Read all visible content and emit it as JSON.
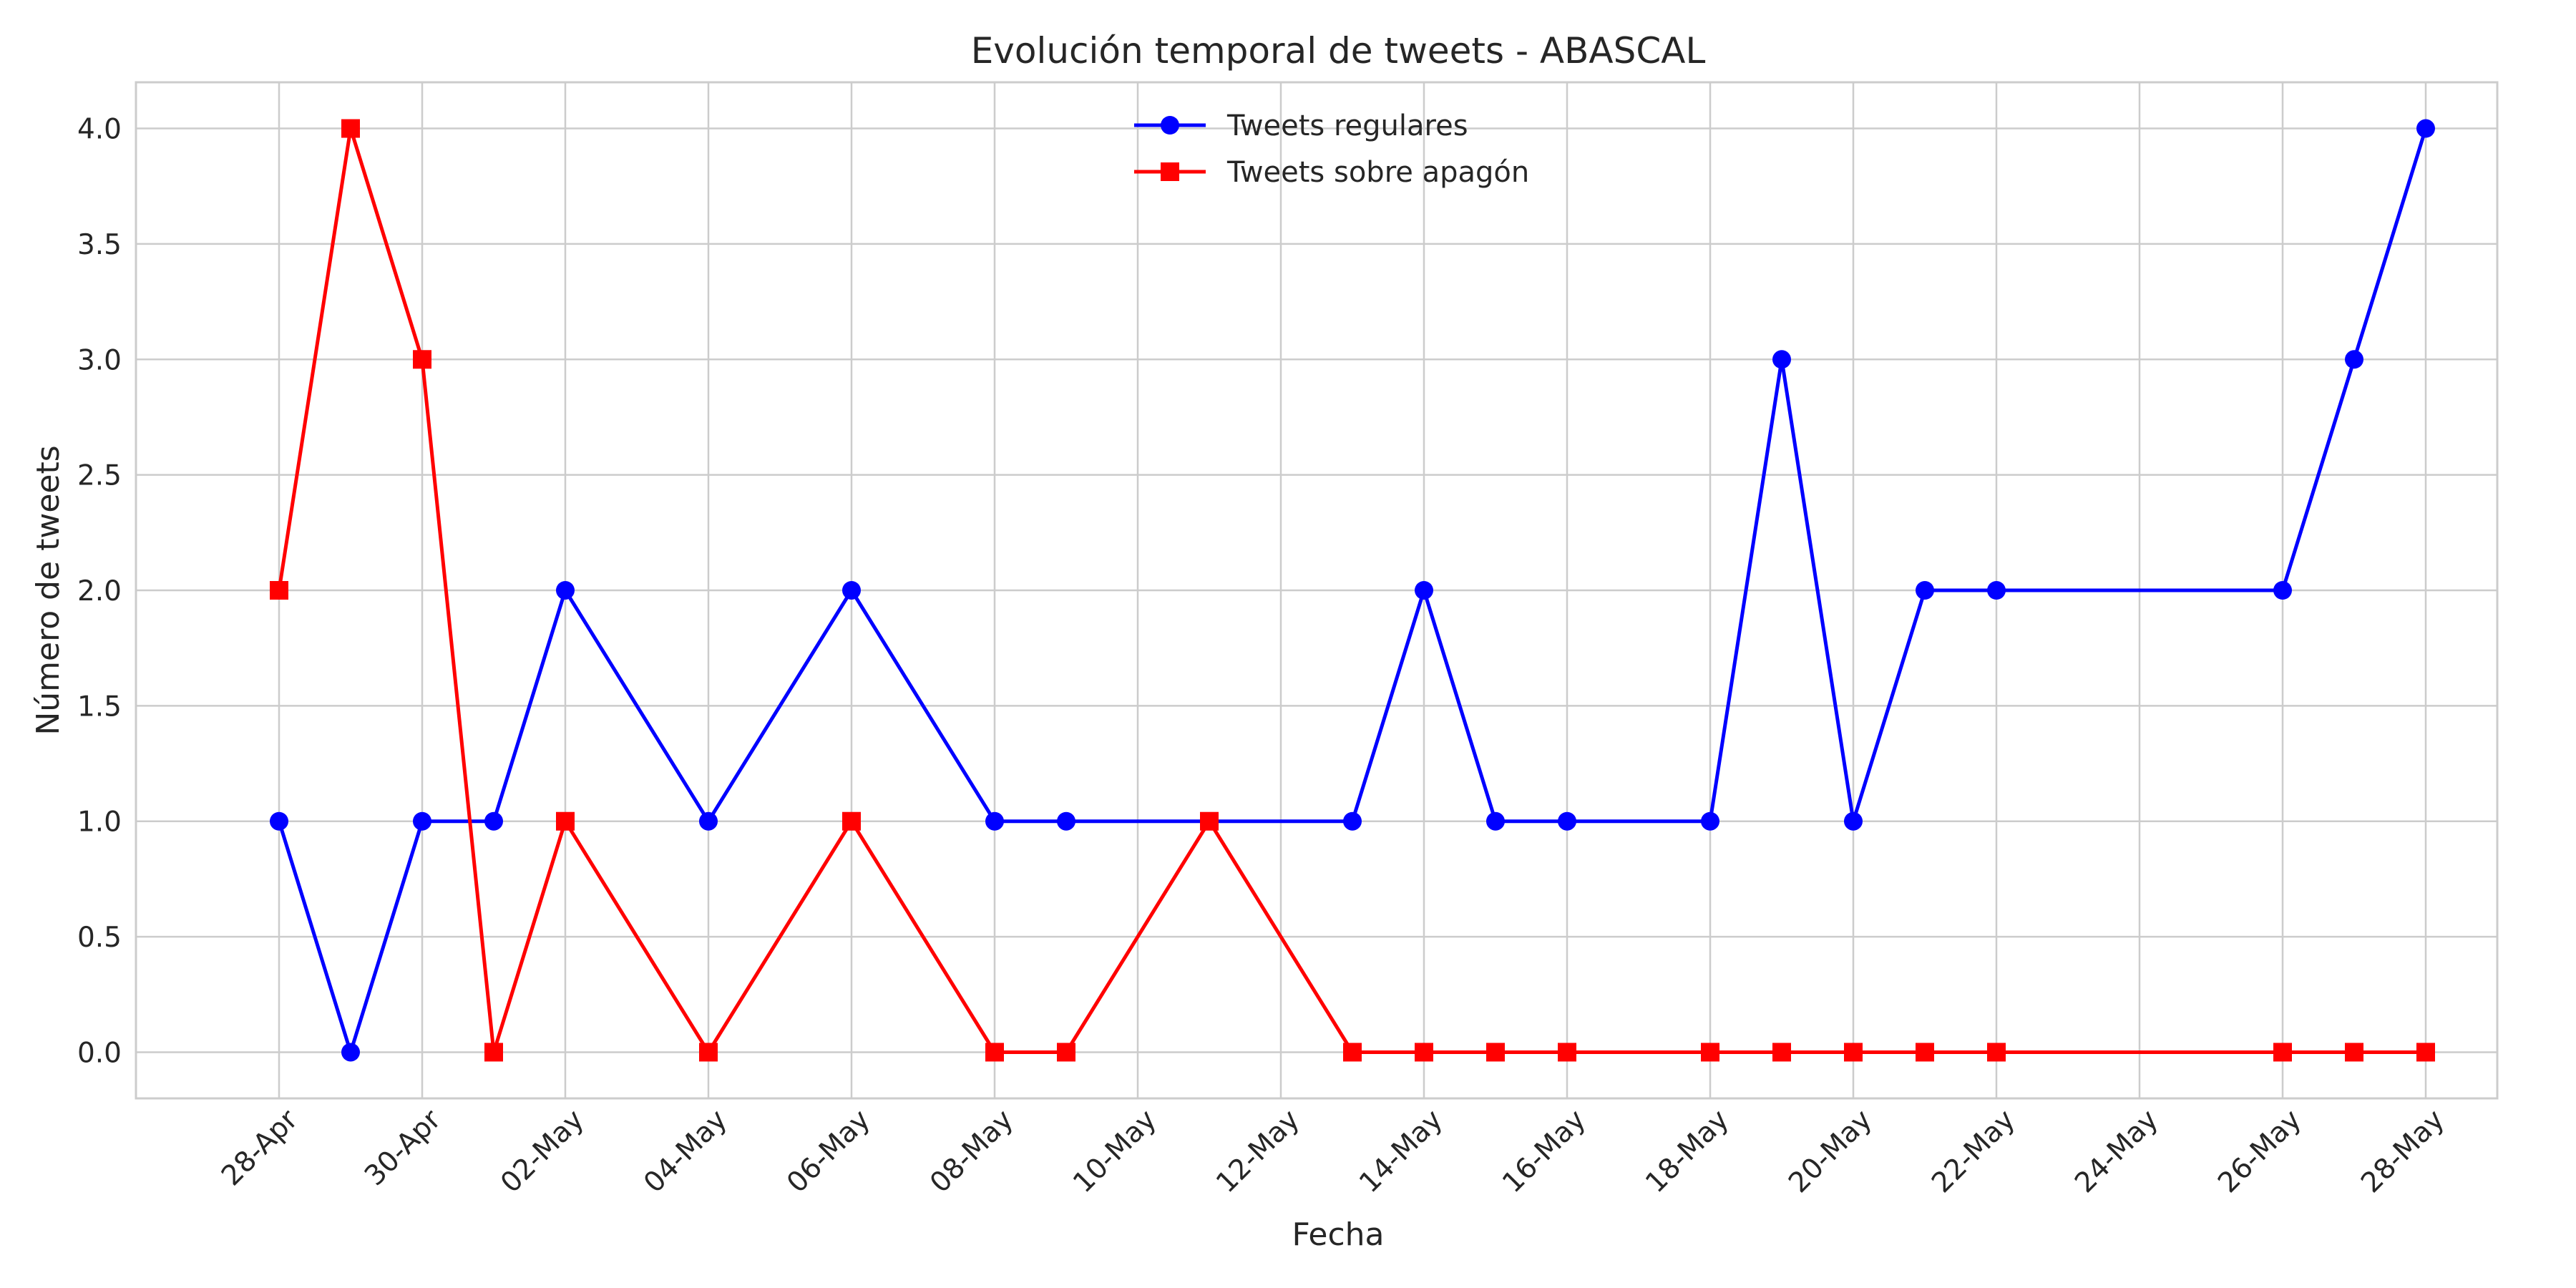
{
  "chart_data": {
    "type": "line",
    "title": "Evolución temporal de tweets - ABASCAL",
    "xlabel": "Fecha",
    "ylabel": "Número de tweets",
    "ylim": [
      -0.2,
      4.2
    ],
    "xlim": [
      "2025-04-26",
      "2025-05-29"
    ],
    "grid": true,
    "legend_position": "upper center",
    "x_ticks": [
      {
        "date": "2025-04-28",
        "label": "28-Apr"
      },
      {
        "date": "2025-04-30",
        "label": "30-Apr"
      },
      {
        "date": "2025-05-02",
        "label": "02-May"
      },
      {
        "date": "2025-05-04",
        "label": "04-May"
      },
      {
        "date": "2025-05-06",
        "label": "06-May"
      },
      {
        "date": "2025-05-08",
        "label": "08-May"
      },
      {
        "date": "2025-05-10",
        "label": "10-May"
      },
      {
        "date": "2025-05-12",
        "label": "12-May"
      },
      {
        "date": "2025-05-14",
        "label": "14-May"
      },
      {
        "date": "2025-05-16",
        "label": "16-May"
      },
      {
        "date": "2025-05-18",
        "label": "18-May"
      },
      {
        "date": "2025-05-20",
        "label": "20-May"
      },
      {
        "date": "2025-05-22",
        "label": "22-May"
      },
      {
        "date": "2025-05-24",
        "label": "24-May"
      },
      {
        "date": "2025-05-26",
        "label": "26-May"
      },
      {
        "date": "2025-05-28",
        "label": "28-May"
      }
    ],
    "y_ticks": [
      {
        "value": 0.0,
        "label": "0.0"
      },
      {
        "value": 0.5,
        "label": "0.5"
      },
      {
        "value": 1.0,
        "label": "1.0"
      },
      {
        "value": 1.5,
        "label": "1.5"
      },
      {
        "value": 2.0,
        "label": "2.0"
      },
      {
        "value": 2.5,
        "label": "2.5"
      },
      {
        "value": 3.0,
        "label": "3.0"
      },
      {
        "value": 3.5,
        "label": "3.5"
      },
      {
        "value": 4.0,
        "label": "4.0"
      }
    ],
    "series": [
      {
        "name": "Tweets regulares",
        "color": "#0000ff",
        "marker": "circle",
        "points": [
          {
            "x": "2025-04-28",
            "y": 1
          },
          {
            "x": "2025-04-29",
            "y": 0
          },
          {
            "x": "2025-04-30",
            "y": 1
          },
          {
            "x": "2025-05-01",
            "y": 1
          },
          {
            "x": "2025-05-02",
            "y": 2
          },
          {
            "x": "2025-05-04",
            "y": 1
          },
          {
            "x": "2025-05-06",
            "y": 2
          },
          {
            "x": "2025-05-08",
            "y": 1
          },
          {
            "x": "2025-05-09",
            "y": 1
          },
          {
            "x": "2025-05-13",
            "y": 1
          },
          {
            "x": "2025-05-14",
            "y": 2
          },
          {
            "x": "2025-05-15",
            "y": 1
          },
          {
            "x": "2025-05-16",
            "y": 1
          },
          {
            "x": "2025-05-18",
            "y": 1
          },
          {
            "x": "2025-05-19",
            "y": 3
          },
          {
            "x": "2025-05-20",
            "y": 1
          },
          {
            "x": "2025-05-21",
            "y": 2
          },
          {
            "x": "2025-05-22",
            "y": 2
          },
          {
            "x": "2025-05-26",
            "y": 2
          },
          {
            "x": "2025-05-27",
            "y": 3
          },
          {
            "x": "2025-05-28",
            "y": 4
          }
        ]
      },
      {
        "name": "Tweets sobre apagón",
        "color": "#ff0000",
        "marker": "square",
        "points": [
          {
            "x": "2025-04-28",
            "y": 2
          },
          {
            "x": "2025-04-29",
            "y": 4
          },
          {
            "x": "2025-04-30",
            "y": 3
          },
          {
            "x": "2025-05-01",
            "y": 0
          },
          {
            "x": "2025-05-02",
            "y": 1
          },
          {
            "x": "2025-05-04",
            "y": 0
          },
          {
            "x": "2025-05-06",
            "y": 1
          },
          {
            "x": "2025-05-08",
            "y": 0
          },
          {
            "x": "2025-05-09",
            "y": 0
          },
          {
            "x": "2025-05-11",
            "y": 1
          },
          {
            "x": "2025-05-13",
            "y": 0
          },
          {
            "x": "2025-05-14",
            "y": 0
          },
          {
            "x": "2025-05-15",
            "y": 0
          },
          {
            "x": "2025-05-16",
            "y": 0
          },
          {
            "x": "2025-05-18",
            "y": 0
          },
          {
            "x": "2025-05-19",
            "y": 0
          },
          {
            "x": "2025-05-20",
            "y": 0
          },
          {
            "x": "2025-05-21",
            "y": 0
          },
          {
            "x": "2025-05-22",
            "y": 0
          },
          {
            "x": "2025-05-26",
            "y": 0
          },
          {
            "x": "2025-05-27",
            "y": 0
          },
          {
            "x": "2025-05-28",
            "y": 0
          }
        ]
      }
    ]
  }
}
